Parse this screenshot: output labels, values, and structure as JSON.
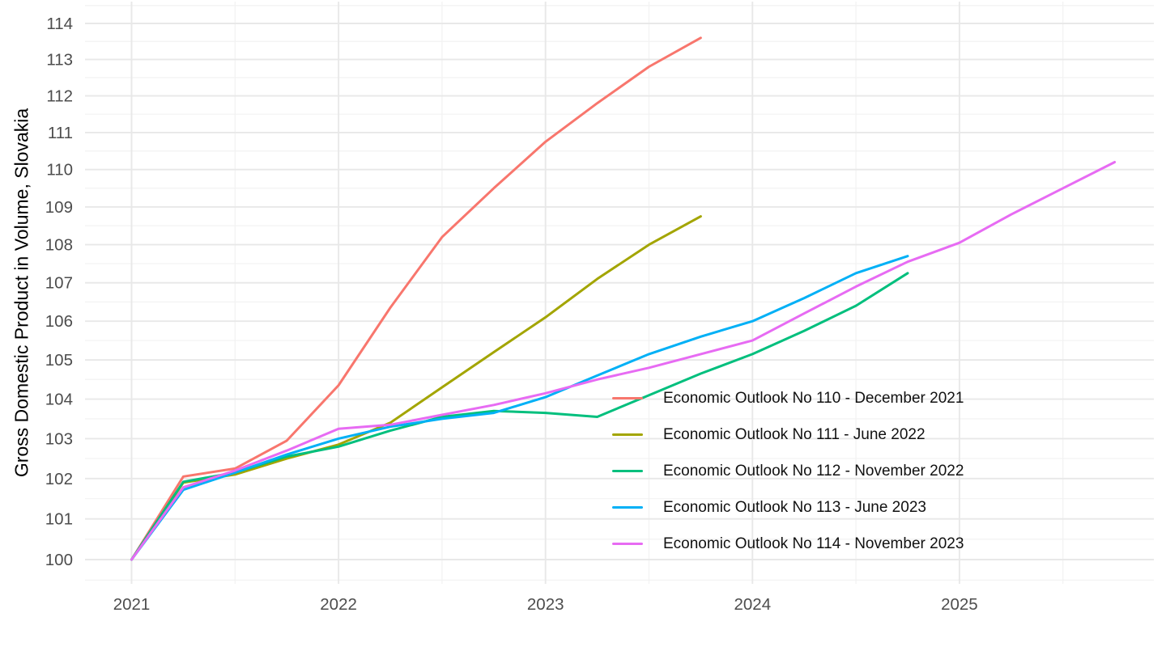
{
  "chart_data": {
    "type": "line",
    "title": "",
    "xlabel": "",
    "ylabel": "Gross Domestic Product in Volume, Slovakia",
    "y_scale": "log",
    "ylim": [
      99.5,
      114.6
    ],
    "xlim": [
      2020.78,
      2025.95
    ],
    "grid": "major-and-minor",
    "legend_position": "inside-right",
    "x_axis": {
      "major_ticks": [
        2021,
        2022,
        2023,
        2024,
        2025
      ],
      "tick_labels": [
        "2021",
        "2022",
        "2023",
        "2024",
        "2025"
      ],
      "minor_ticks": [
        2021.5,
        2022.5,
        2023.5,
        2024.5,
        2025.5
      ]
    },
    "y_axis": {
      "major_ticks": [
        100,
        101,
        102,
        103,
        104,
        105,
        106,
        107,
        108,
        109,
        110,
        111,
        112,
        113,
        114
      ],
      "tick_labels": [
        "100",
        "101",
        "102",
        "103",
        "104",
        "105",
        "106",
        "107",
        "108",
        "109",
        "110",
        "111",
        "112",
        "113",
        "114"
      ],
      "minor_ticks": [
        99.5,
        100.5,
        101.5,
        102.5,
        103.5,
        104.5,
        105.5,
        106.5,
        107.5,
        108.5,
        109.5,
        110.5,
        111.5,
        112.5,
        113.5,
        114.5
      ]
    },
    "x_start": 2021.0,
    "x_step": 0.25,
    "series": [
      {
        "name": "Economic Outlook No 110 - December 2021",
        "color": "#F8766D",
        "values": [
          100,
          102.05,
          102.25,
          102.95,
          104.35,
          106.35,
          108.2,
          109.5,
          110.75,
          111.8,
          112.8,
          113.6
        ]
      },
      {
        "name": "Economic Outlook No 111 - June 2022",
        "color": "#A3A500",
        "values": [
          100,
          101.9,
          102.1,
          102.5,
          102.85,
          103.4,
          104.3,
          105.2,
          106.1,
          107.1,
          108.0,
          108.75
        ]
      },
      {
        "name": "Economic Outlook No 112 - November 2022",
        "color": "#00BF7D",
        "values": [
          100,
          101.92,
          102.15,
          102.55,
          102.8,
          103.2,
          103.55,
          103.7,
          103.65,
          103.55,
          104.1,
          104.65,
          105.15,
          105.75,
          106.4,
          107.25
        ]
      },
      {
        "name": "Economic Outlook No 113 - June 2023",
        "color": "#00B0F6",
        "values": [
          100,
          101.72,
          102.15,
          102.6,
          103.0,
          103.3,
          103.5,
          103.65,
          104.05,
          104.6,
          105.15,
          105.6,
          106.0,
          106.6,
          107.25,
          107.7
        ]
      },
      {
        "name": "Economic Outlook No 114 - November 2023",
        "color": "#E76BF3",
        "values": [
          100,
          101.78,
          102.2,
          102.7,
          103.25,
          103.35,
          103.6,
          103.85,
          104.15,
          104.5,
          104.8,
          105.15,
          105.5,
          106.2,
          106.9,
          107.55,
          108.05,
          108.8,
          109.5,
          110.2
        ]
      }
    ],
    "style": {
      "major_grid_color": "#e8e8e8",
      "minor_grid_color": "#f2f2f2",
      "axis_text_color": "#4d4d4d",
      "background": "#ffffff"
    }
  }
}
